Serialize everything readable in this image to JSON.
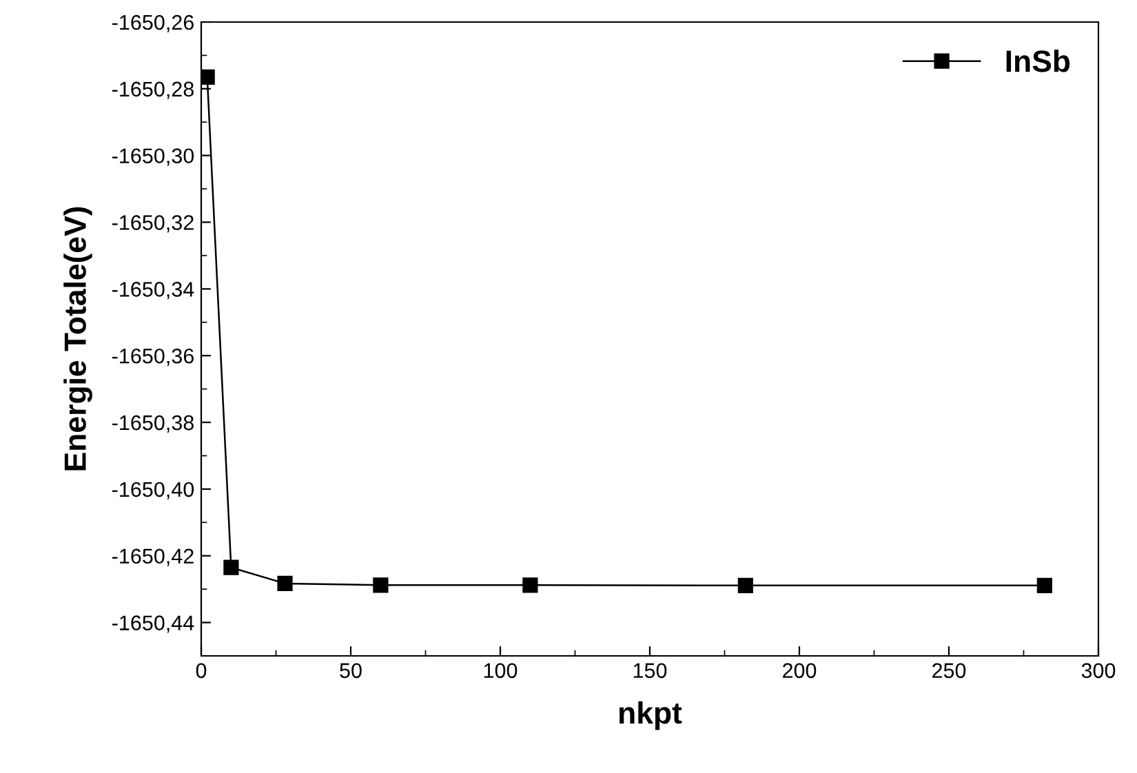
{
  "chart_data": {
    "type": "line",
    "xlabel": "nkpt",
    "ylabel": "Energie Totale(eV)",
    "x": [
      2,
      10,
      28,
      60,
      110,
      182,
      282
    ],
    "series": [
      {
        "name": "InSb",
        "color": "#000000",
        "values": [
          -1650.2765,
          -1650.4235,
          -1650.4283,
          -1650.4288,
          -1650.4288,
          -1650.4289,
          -1650.4289
        ]
      }
    ],
    "xlim": [
      0,
      300
    ],
    "xticks": [
      0,
      50,
      100,
      150,
      200,
      250,
      300
    ],
    "ylim": [
      -1650.45,
      -1650.26
    ],
    "yticks": [
      {
        "value": -1650.44,
        "label": "-1650,44"
      },
      {
        "value": -1650.42,
        "label": "-1650,42"
      },
      {
        "value": -1650.4,
        "label": "-1650,40"
      },
      {
        "value": -1650.38,
        "label": "-1650,38"
      },
      {
        "value": -1650.36,
        "label": "-1650,36"
      },
      {
        "value": -1650.34,
        "label": "-1650,34"
      },
      {
        "value": -1650.32,
        "label": "-1650,32"
      },
      {
        "value": -1650.3,
        "label": "-1650,30"
      },
      {
        "value": -1650.28,
        "label": "-1650,28"
      },
      {
        "value": -1650.26,
        "label": "-1650,26"
      }
    ],
    "marker": "square",
    "line_style": "solid",
    "legend": "top right",
    "grid": false
  }
}
